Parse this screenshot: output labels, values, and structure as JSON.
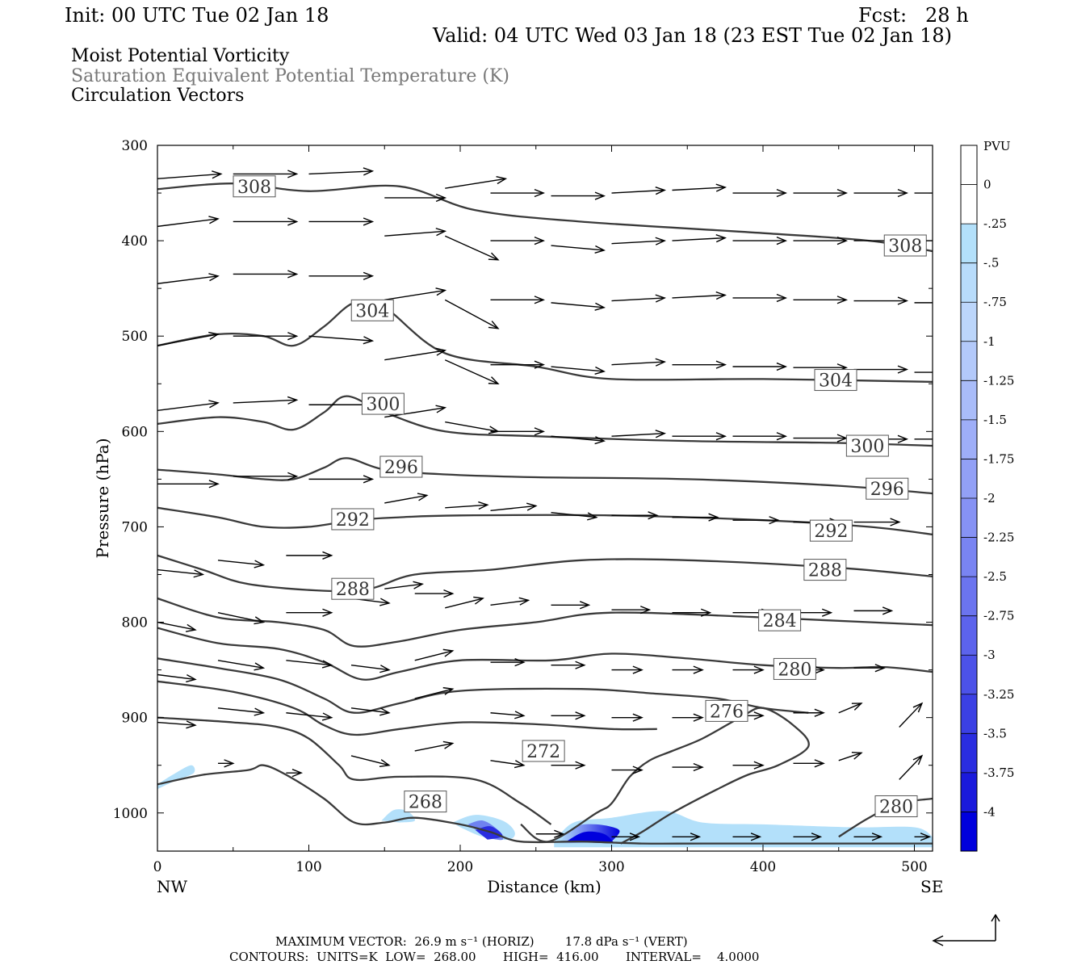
{
  "header": {
    "init": "Init: 00 UTC Tue 02 Jan 18",
    "fcst": "Fcst:   28 h",
    "valid": "Valid: 04 UTC Wed 03 Jan 18 (23 EST Tue 02 Jan 18)",
    "field1": "Moist Potential Vorticity",
    "field2": "Saturation Equivalent Potential Temperature (K)",
    "field3": "Circulation Vectors"
  },
  "footer": {
    "max_vector": "MAXIMUM VECTOR:  26.9 m s⁻¹ (HORIZ)        17.8 dPa s⁻¹ (VERT)",
    "contours": "CONTOURS:  UNITS=K  LOW=  268.00       HIGH=  416.00       INTERVAL=    4.0000"
  },
  "colors": {
    "contour": "#3a3a3a",
    "vector": "#000000",
    "mpv_light": "#b3e0fa",
    "mpv_dark": "#0000dd"
  },
  "chart_data": {
    "type": "contour cross-section",
    "xlabel": "Distance (km)",
    "ylabel": "Pressure (hPa)",
    "x_left_label": "NW",
    "x_right_label": "SE",
    "xlim": [
      0,
      512
    ],
    "ylim": [
      1040,
      300
    ],
    "y_scale": "linear, inverted",
    "x_ticks": [
      0,
      100,
      200,
      300,
      400,
      500
    ],
    "y_ticks": [
      300,
      400,
      500,
      600,
      700,
      800,
      900,
      1000
    ],
    "colorbar": {
      "title": "PVU",
      "labels": [
        "0",
        "-.25",
        "-.5",
        "-.75",
        "-1",
        "-1.25",
        "-1.5",
        "-1.75",
        "-2",
        "-2.25",
        "-2.5",
        "-2.75",
        "-3",
        "-3.25",
        "-3.5",
        "-3.75",
        "-4"
      ],
      "colors": [
        "#ffffff",
        "#ffffff",
        "#b3e0fa",
        "#b8dcfb",
        "#bcd6fb",
        "#b3c9fa",
        "#a9bcf9",
        "#9eaef8",
        "#92a0f6",
        "#8692f4",
        "#7984f2",
        "#6b74ef",
        "#5c63ec",
        "#4c52e8",
        "#3b40e4",
        "#2a2de0",
        "#1a1adc",
        "#0000dd"
      ]
    },
    "contour_series": [
      {
        "label": "308",
        "points": [
          [
            0,
            346
          ],
          [
            50,
            340
          ],
          [
            100,
            348
          ],
          [
            160,
            343
          ],
          [
            210,
            368
          ],
          [
            280,
            380
          ],
          [
            400,
            392
          ],
          [
            470,
            400
          ],
          [
            512,
            411
          ]
        ]
      },
      {
        "label": "304",
        "points": [
          [
            0,
            510
          ],
          [
            40,
            498
          ],
          [
            70,
            500
          ],
          [
            90,
            510
          ],
          [
            110,
            490
          ],
          [
            130,
            465
          ],
          [
            150,
            470
          ],
          [
            190,
            518
          ],
          [
            250,
            532
          ],
          [
            300,
            545
          ],
          [
            400,
            545
          ],
          [
            512,
            548
          ]
        ]
      },
      {
        "label": "300",
        "points": [
          [
            0,
            592
          ],
          [
            40,
            585
          ],
          [
            70,
            590
          ],
          [
            90,
            598
          ],
          [
            110,
            580
          ],
          [
            125,
            563
          ],
          [
            150,
            580
          ],
          [
            190,
            600
          ],
          [
            250,
            605
          ],
          [
            350,
            610
          ],
          [
            450,
            612
          ],
          [
            512,
            615
          ]
        ]
      },
      {
        "label": "296",
        "points": [
          [
            0,
            640
          ],
          [
            40,
            645
          ],
          [
            70,
            650
          ],
          [
            90,
            650
          ],
          [
            110,
            638
          ],
          [
            125,
            628
          ],
          [
            150,
            640
          ],
          [
            190,
            645
          ],
          [
            250,
            648
          ],
          [
            350,
            650
          ],
          [
            450,
            657
          ],
          [
            512,
            665
          ]
        ]
      },
      {
        "label": "292",
        "points": [
          [
            0,
            680
          ],
          [
            40,
            690
          ],
          [
            70,
            700
          ],
          [
            100,
            700
          ],
          [
            130,
            693
          ],
          [
            160,
            690
          ],
          [
            200,
            688
          ],
          [
            300,
            688
          ],
          [
            400,
            693
          ],
          [
            470,
            700
          ],
          [
            512,
            708
          ]
        ]
      },
      {
        "label": "288",
        "points": [
          [
            0,
            730
          ],
          [
            30,
            745
          ],
          [
            60,
            760
          ],
          [
            110,
            767
          ],
          [
            140,
            765
          ],
          [
            170,
            750
          ],
          [
            220,
            745
          ],
          [
            280,
            735
          ],
          [
            350,
            735
          ],
          [
            450,
            743
          ],
          [
            512,
            752
          ]
        ]
      },
      {
        "label": "284",
        "points": [
          [
            0,
            775
          ],
          [
            40,
            795
          ],
          [
            80,
            800
          ],
          [
            110,
            808
          ],
          [
            130,
            825
          ],
          [
            160,
            820
          ],
          [
            200,
            808
          ],
          [
            250,
            800
          ],
          [
            300,
            790
          ],
          [
            400,
            795
          ],
          [
            470,
            800
          ],
          [
            512,
            803
          ]
        ]
      },
      {
        "label": "280",
        "points": [
          [
            0,
            806
          ],
          [
            40,
            822
          ],
          [
            80,
            828
          ],
          [
            110,
            842
          ],
          [
            135,
            860
          ],
          [
            160,
            852
          ],
          [
            200,
            840
          ],
          [
            260,
            840
          ],
          [
            300,
            833
          ],
          [
            350,
            838
          ],
          [
            400,
            845
          ],
          [
            450,
            848
          ],
          [
            480,
            847
          ],
          [
            512,
            852
          ]
        ]
      },
      {
        "label": "",
        "points": [
          [
            0,
            838
          ],
          [
            40,
            848
          ],
          [
            80,
            860
          ],
          [
            110,
            880
          ],
          [
            130,
            895
          ],
          [
            160,
            885
          ],
          [
            200,
            872
          ],
          [
            280,
            870
          ],
          [
            330,
            875
          ],
          [
            370,
            880
          ],
          [
            400,
            890
          ],
          [
            430,
            895
          ]
        ]
      },
      {
        "label": "",
        "points": [
          [
            0,
            862
          ],
          [
            50,
            873
          ],
          [
            90,
            890
          ],
          [
            110,
            908
          ],
          [
            130,
            918
          ],
          [
            160,
            912
          ],
          [
            200,
            905
          ],
          [
            250,
            907
          ],
          [
            300,
            912
          ],
          [
            330,
            912
          ]
        ]
      },
      {
        "label": "276",
        "points": [
          [
            0,
            900
          ],
          [
            50,
            905
          ],
          [
            80,
            910
          ],
          [
            100,
            922
          ],
          [
            120,
            950
          ],
          [
            130,
            965
          ],
          [
            160,
            962
          ],
          [
            210,
            965
          ],
          [
            240,
            990
          ],
          [
            260,
            1012
          ]
        ]
      },
      {
        "label": "272",
        "points": [
          [
            240,
            1012
          ],
          [
            258,
            1030
          ],
          [
            290,
            1000
          ],
          [
            300,
            990
          ],
          [
            312,
            962
          ],
          [
            325,
            945
          ],
          [
            340,
            935
          ],
          [
            360,
            922
          ],
          [
            385,
            900
          ],
          [
            400,
            890
          ],
          [
            420,
            908
          ],
          [
            430,
            930
          ],
          [
            410,
            950
          ],
          [
            390,
            960
          ],
          [
            370,
            975
          ],
          [
            340,
            1000
          ],
          [
            320,
            1020
          ],
          [
            306,
            1032
          ]
        ]
      },
      {
        "label": "268",
        "points": [
          [
            0,
            970
          ],
          [
            30,
            960
          ],
          [
            60,
            955
          ],
          [
            70,
            950
          ],
          [
            85,
            960
          ],
          [
            110,
            985
          ],
          [
            130,
            1010
          ],
          [
            150,
            1010
          ],
          [
            170,
            1005
          ],
          [
            200,
            1012
          ],
          [
            220,
            1020
          ],
          [
            240,
            1030
          ],
          [
            280,
            1030
          ],
          [
            320,
            1032
          ],
          [
            360,
            1032
          ],
          [
            420,
            1032
          ],
          [
            470,
            1032
          ],
          [
            512,
            1032
          ]
        ]
      },
      {
        "label": "280",
        "points": [
          [
            450,
            1025
          ],
          [
            470,
            1005
          ],
          [
            490,
            990
          ],
          [
            512,
            985
          ]
        ]
      }
    ]
  }
}
